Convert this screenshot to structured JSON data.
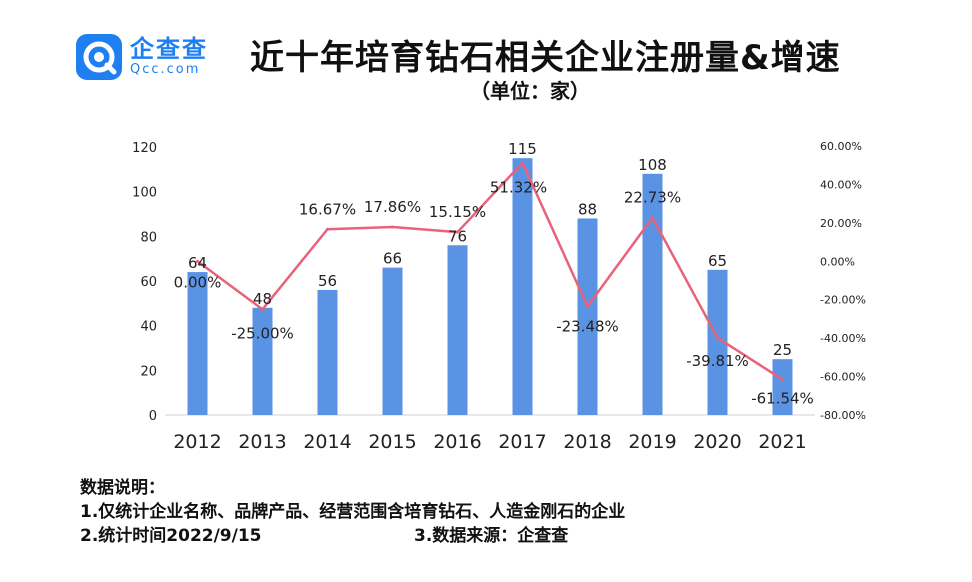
{
  "header": {
    "logo_cn": "企查查",
    "logo_en": "Qcc.com",
    "title": "近十年培育钻石相关企业注册量&增速",
    "subtitle": "（单位：家）"
  },
  "notes": {
    "heading": "数据说明：",
    "line1": "1.仅统计企业名称、品牌产品、经营范围含培育钻石、人造金刚石的企业",
    "line2": "2.统计时间2022/9/15",
    "line3": "3.数据来源：企查查"
  },
  "colors": {
    "bar": "#5b93e4",
    "line": "#e8637a",
    "brand": "#1e7ff0"
  },
  "chart_data": {
    "type": "bar",
    "categories": [
      "2012",
      "2013",
      "2014",
      "2015",
      "2016",
      "2017",
      "2018",
      "2019",
      "2020",
      "2021"
    ],
    "series": [
      {
        "type": "bar",
        "axis": "left",
        "values": [
          64,
          48,
          56,
          66,
          76,
          115,
          88,
          108,
          65,
          25
        ]
      },
      {
        "type": "line",
        "axis": "right",
        "values": [
          0.0,
          -25.0,
          16.67,
          17.86,
          15.15,
          51.32,
          -23.48,
          22.73,
          -39.81,
          -61.54
        ]
      }
    ],
    "bar_labels": [
      "64",
      "48",
      "56",
      "66",
      "76",
      "115",
      "88",
      "108",
      "65",
      "25"
    ],
    "line_labels": [
      "0.00%",
      "-25.00%",
      "16.67%",
      "17.86%",
      "15.15%",
      "51.32%",
      "-23.48%",
      "22.73%",
      "-39.81%",
      "-61.54%"
    ],
    "ylim_left": [
      0,
      120
    ],
    "yticks_left": [
      "0",
      "20",
      "40",
      "60",
      "80",
      "100",
      "120"
    ],
    "ylim_right": [
      -80,
      60
    ],
    "yticks_right": [
      "-80.00%",
      "-60.00%",
      "-40.00%",
      "-20.00%",
      "0.00%",
      "20.00%",
      "40.00%",
      "60.00%"
    ],
    "grid": false,
    "legend": "none"
  }
}
